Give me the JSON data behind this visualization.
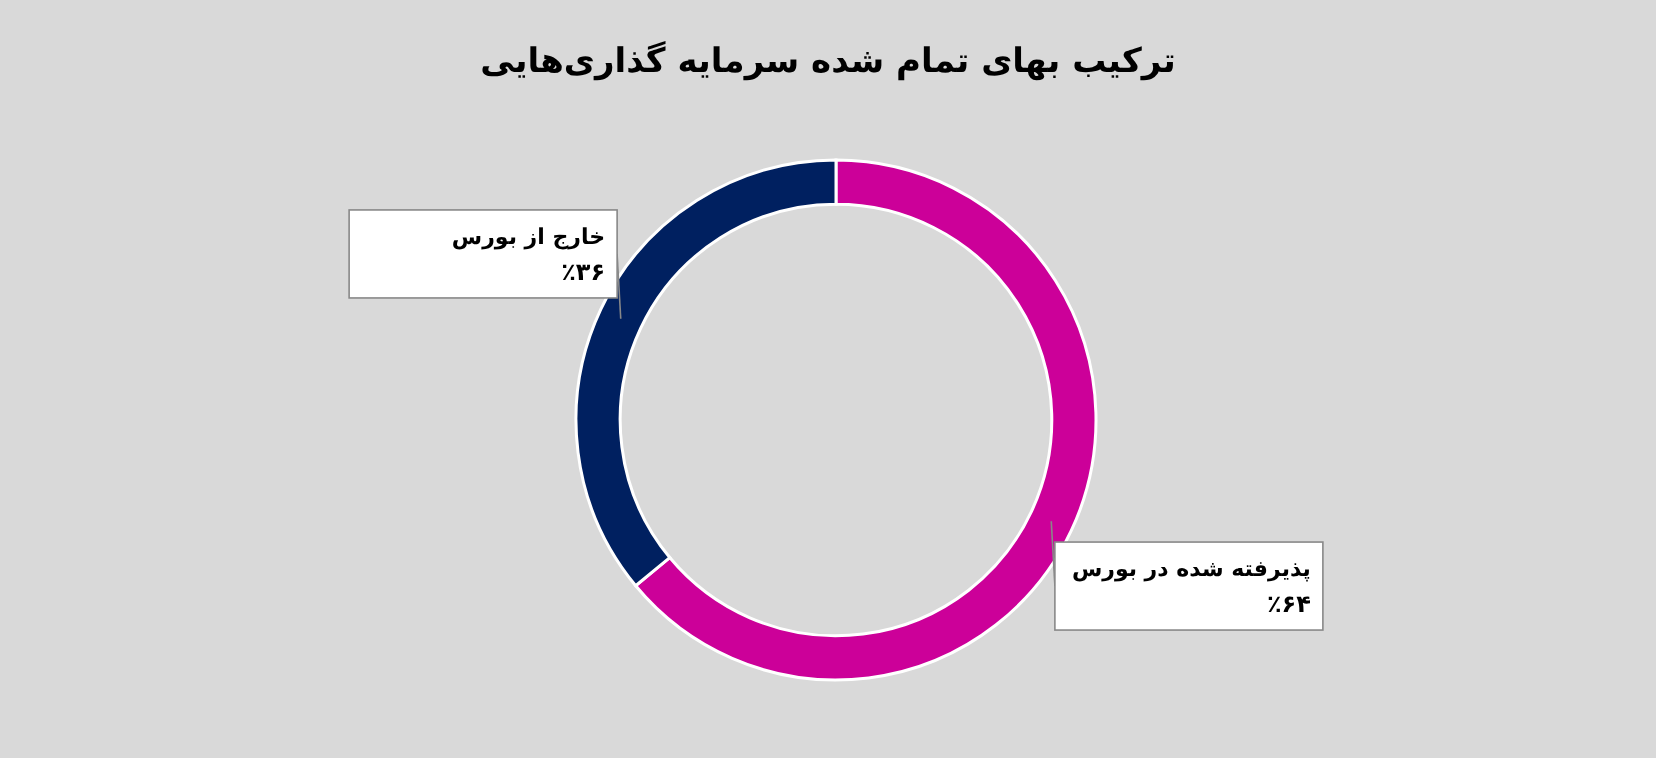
{
  "chart_data": {
    "type": "donut",
    "title": "ترکیب بهای تمام شده سرمایه گذاری‌هایی",
    "categories": [
      "پذیرفته شده در بورس",
      "خارج از بورس"
    ],
    "values": [
      64,
      36
    ],
    "colors": [
      "#cc0099",
      "#002060"
    ],
    "value_labels": [
      "٪۶۴",
      "٪۳۶"
    ]
  }
}
